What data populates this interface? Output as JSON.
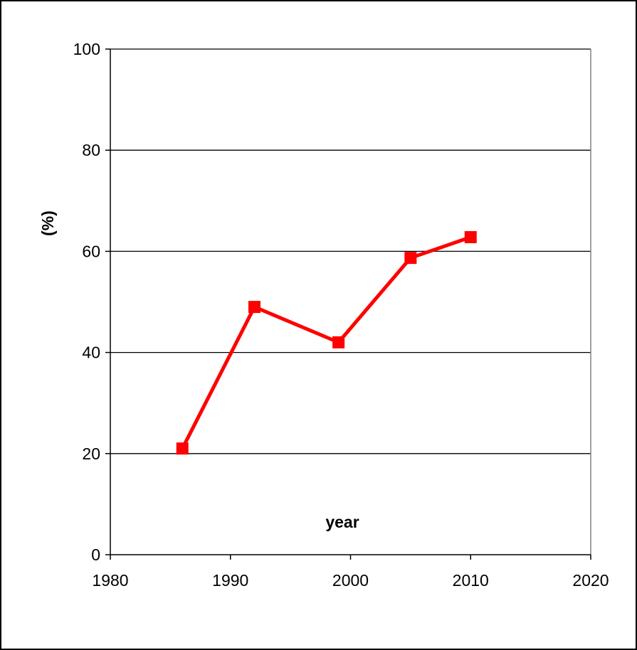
{
  "chart_data": {
    "type": "line",
    "title": "",
    "xlabel": "year",
    "ylabel": "(%)",
    "xlim": [
      1980,
      2020
    ],
    "ylim": [
      0,
      100
    ],
    "x_ticks": [
      1980,
      1990,
      2000,
      2010,
      2020
    ],
    "y_ticks": [
      0,
      20,
      40,
      60,
      80,
      100
    ],
    "grid": "horizontal",
    "legend": "none",
    "series": [
      {
        "color": "#ff0000",
        "marker": "square",
        "x": [
          1986,
          1992,
          1999,
          2005,
          2010
        ],
        "y": [
          21,
          49,
          42,
          58.7,
          62.8
        ]
      }
    ]
  }
}
